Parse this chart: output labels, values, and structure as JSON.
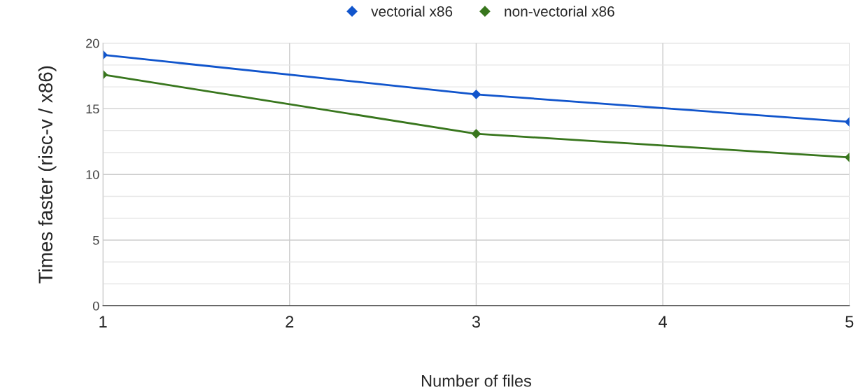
{
  "chart_data": {
    "type": "line",
    "xlabel": "Number of files",
    "ylabel": "Times faster (risc-v / x86)",
    "x": [
      1,
      3,
      5
    ],
    "series": [
      {
        "name": "vectorial x86",
        "color": "#1155cc",
        "values": [
          19.1,
          16.1,
          14.0
        ]
      },
      {
        "name": "non-vectorial x86",
        "color": "#38761d",
        "values": [
          17.6,
          13.1,
          11.3
        ]
      }
    ],
    "xlim": [
      1,
      5
    ],
    "xticks": [
      1,
      2,
      3,
      4,
      5
    ],
    "ylim": [
      0,
      20
    ],
    "yticks": [
      0,
      5,
      10,
      15,
      20
    ],
    "grid": true,
    "legend": "top",
    "marker": "diamond",
    "line_style": "solid"
  }
}
